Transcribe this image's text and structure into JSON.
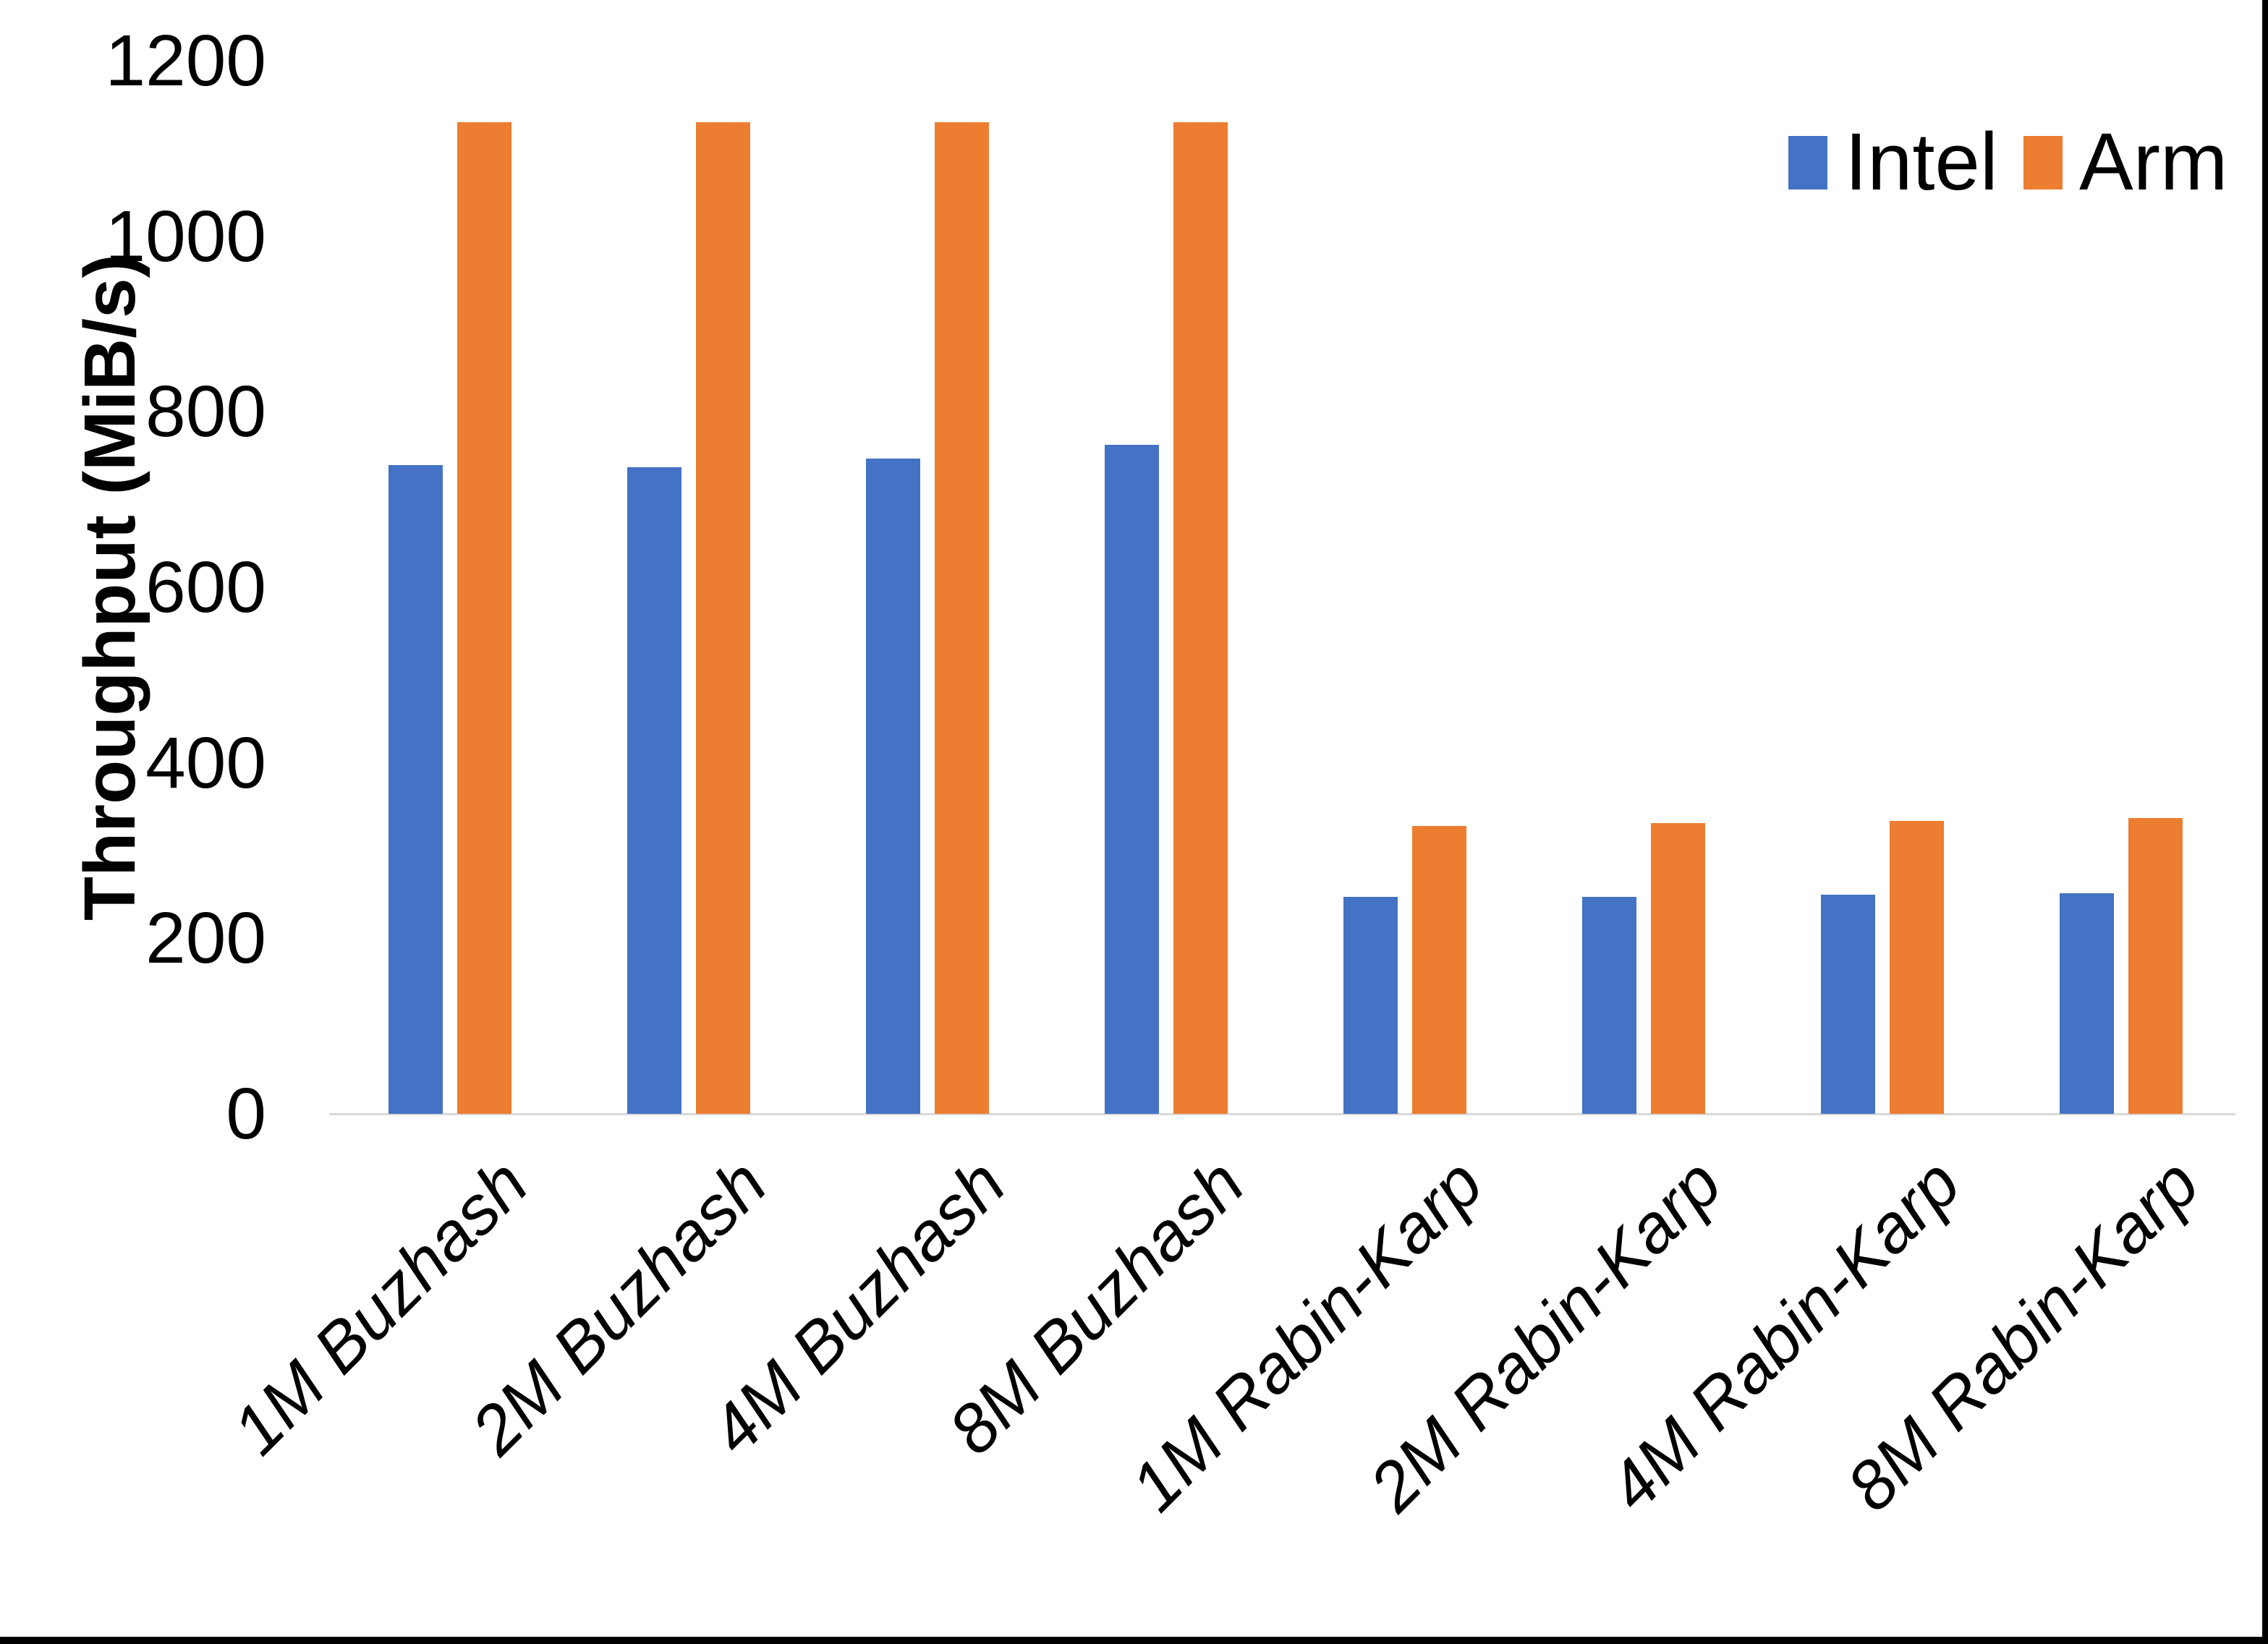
{
  "chart_data": {
    "type": "bar",
    "title": "",
    "xlabel": "",
    "ylabel": "Throughput (MiB/s)",
    "categories": [
      "1M Buzhash",
      "2M Buzhash",
      "4M Buzhash",
      "8M Buzhash",
      "1M Rabin-Karp",
      "2M Rabin-Karp",
      "4M Rabin-Karp",
      "8M Rabin-Karp"
    ],
    "series": [
      {
        "name": "Intel",
        "color": "#4472C4",
        "values": [
          739,
          737,
          747,
          762,
          247,
          247,
          250,
          251
        ]
      },
      {
        "name": "Arm",
        "color": "#ED7D31",
        "values": [
          1130,
          1130,
          1130,
          1130,
          328,
          331,
          334,
          337
        ]
      }
    ],
    "ylim": [
      0,
      1200
    ],
    "yticks": [
      0,
      200,
      400,
      600,
      800,
      1000,
      1200
    ],
    "grid": false,
    "legend_position": "top-right",
    "axis_line_color": "#D9D9D9"
  }
}
